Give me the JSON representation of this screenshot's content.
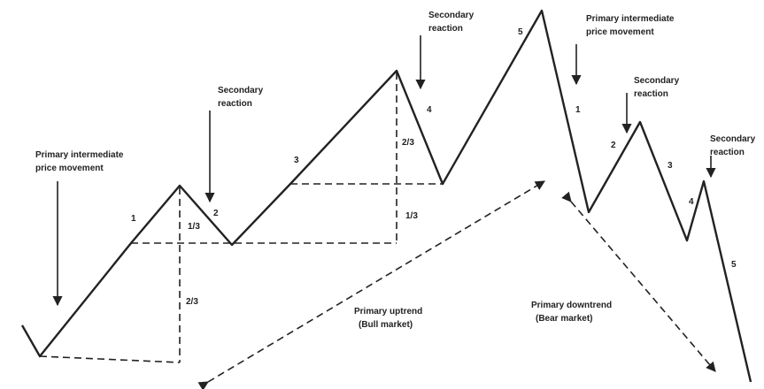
{
  "annotations": [
    {
      "lines": [
        "Primary intermediate",
        "price movement"
      ]
    },
    {
      "lines": [
        "Secondary",
        "reaction"
      ]
    },
    {
      "lines": [
        "Secondary",
        "reaction"
      ]
    },
    {
      "lines": [
        "Primary intermediate",
        "price movement"
      ]
    },
    {
      "lines": [
        "Secondary",
        "reaction"
      ]
    },
    {
      "lines": [
        "Secondary",
        "reaction"
      ]
    },
    {
      "lines": [
        "Primary uptrend",
        "(Bull market)"
      ]
    },
    {
      "lines": [
        "Primary downtrend",
        "(Bear market)"
      ]
    }
  ],
  "bull_points": [
    "1",
    "2",
    "3",
    "4",
    "5"
  ],
  "bear_points": [
    "1",
    "2",
    "3",
    "4",
    "5"
  ],
  "fractions": [
    "1/3",
    "2/3",
    "2/3",
    "1/3"
  ]
}
